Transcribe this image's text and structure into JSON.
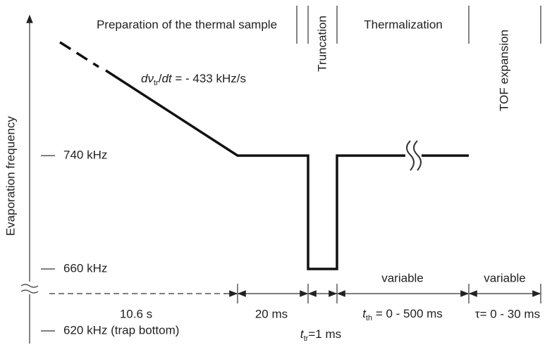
{
  "axis": {
    "label": "Evaporation frequency",
    "levels": [
      "740 kHz",
      "660 kHz",
      "620 kHz (trap bottom)"
    ]
  },
  "phases": [
    "Preparation of the thermal sample",
    "Truncation",
    "Thermalization",
    "TOF expansion"
  ],
  "slope_label": {
    "main": "dν",
    "sub": "tr",
    "slash": "/",
    "dt": "dt",
    "rest": " = - 433 kHz/s"
  },
  "durations": {
    "ramp": "10.6 s",
    "plateau": "20 ms",
    "truncation": {
      "symbol": "t",
      "sub": "tr",
      "rest": "=1 ms"
    },
    "thermalization": {
      "note": "variable",
      "symbol": "t",
      "sub": "th",
      "rest": " = 0 - 500 ms"
    },
    "tof": {
      "note": "variable",
      "text": "τ= 0 - 30 ms"
    }
  }
}
